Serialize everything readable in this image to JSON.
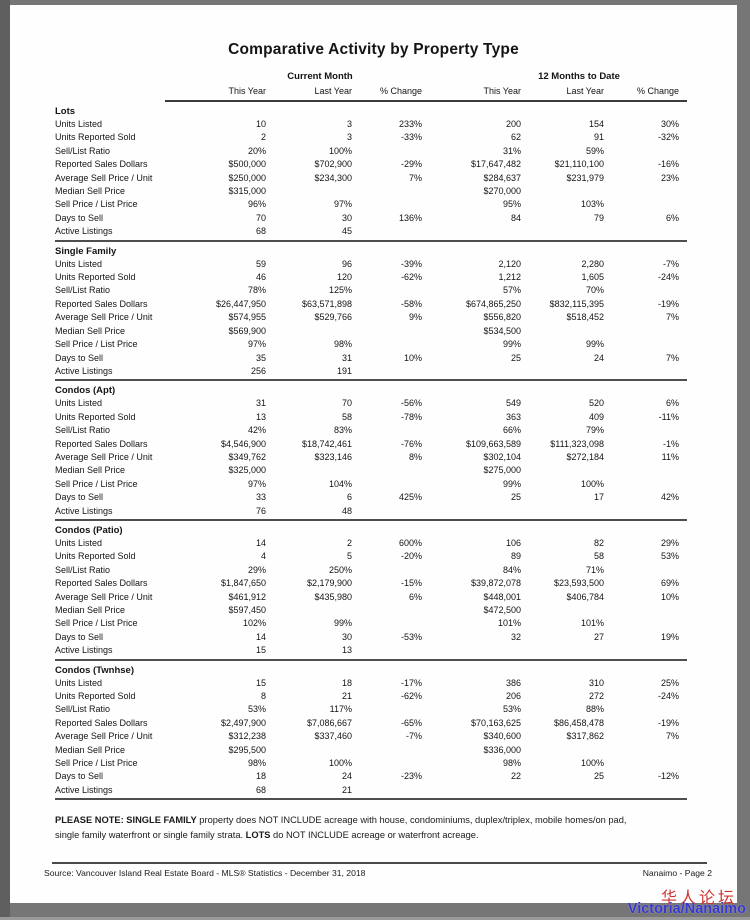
{
  "title": "Comparative Activity by Property Type",
  "table": {
    "group_headers": [
      "Current Month",
      "12 Months to Date"
    ],
    "column_headers": [
      "This Year",
      "Last Year",
      "% Change",
      "This Year",
      "Last Year",
      "% Change"
    ],
    "sections": [
      {
        "name": "Lots",
        "rows": [
          {
            "label": "Units Listed",
            "cells": [
              "10",
              "3",
              "233%",
              "200",
              "154",
              "30%"
            ]
          },
          {
            "label": "Units Reported Sold",
            "cells": [
              "2",
              "3",
              "-33%",
              "62",
              "91",
              "-32%"
            ]
          },
          {
            "label": "Sell/List Ratio",
            "cells": [
              "20%",
              "100%",
              "",
              "31%",
              "59%",
              ""
            ]
          },
          {
            "label": "Reported Sales Dollars",
            "cells": [
              "$500,000",
              "$702,900",
              "-29%",
              "$17,647,482",
              "$21,110,100",
              "-16%"
            ]
          },
          {
            "label": "Average Sell Price / Unit",
            "cells": [
              "$250,000",
              "$234,300",
              "7%",
              "$284,637",
              "$231,979",
              "23%"
            ]
          },
          {
            "label": "Median Sell Price",
            "cells": [
              "$315,000",
              "",
              "",
              "$270,000",
              "",
              ""
            ]
          },
          {
            "label": "Sell Price / List Price",
            "cells": [
              "96%",
              "97%",
              "",
              "95%",
              "103%",
              ""
            ]
          },
          {
            "label": "Days to Sell",
            "cells": [
              "70",
              "30",
              "136%",
              "84",
              "79",
              "6%"
            ]
          },
          {
            "label": "Active Listings",
            "cells": [
              "68",
              "45",
              "",
              "",
              "",
              ""
            ]
          }
        ]
      },
      {
        "name": "Single Family",
        "rows": [
          {
            "label": "Units Listed",
            "cells": [
              "59",
              "96",
              "-39%",
              "2,120",
              "2,280",
              "-7%"
            ]
          },
          {
            "label": "Units Reported Sold",
            "cells": [
              "46",
              "120",
              "-62%",
              "1,212",
              "1,605",
              "-24%"
            ]
          },
          {
            "label": "Sell/List Ratio",
            "cells": [
              "78%",
              "125%",
              "",
              "57%",
              "70%",
              ""
            ]
          },
          {
            "label": "Reported Sales Dollars",
            "cells": [
              "$26,447,950",
              "$63,571,898",
              "-58%",
              "$674,865,250",
              "$832,115,395",
              "-19%"
            ]
          },
          {
            "label": "Average Sell Price / Unit",
            "cells": [
              "$574,955",
              "$529,766",
              "9%",
              "$556,820",
              "$518,452",
              "7%"
            ]
          },
          {
            "label": "Median Sell Price",
            "cells": [
              "$569,900",
              "",
              "",
              "$534,500",
              "",
              ""
            ]
          },
          {
            "label": "Sell Price / List Price",
            "cells": [
              "97%",
              "98%",
              "",
              "99%",
              "99%",
              ""
            ]
          },
          {
            "label": "Days to Sell",
            "cells": [
              "35",
              "31",
              "10%",
              "25",
              "24",
              "7%"
            ]
          },
          {
            "label": "Active Listings",
            "cells": [
              "256",
              "191",
              "",
              "",
              "",
              ""
            ]
          }
        ]
      },
      {
        "name": "Condos (Apt)",
        "rows": [
          {
            "label": "Units Listed",
            "cells": [
              "31",
              "70",
              "-56%",
              "549",
              "520",
              "6%"
            ]
          },
          {
            "label": "Units Reported Sold",
            "cells": [
              "13",
              "58",
              "-78%",
              "363",
              "409",
              "-11%"
            ]
          },
          {
            "label": "Sell/List Ratio",
            "cells": [
              "42%",
              "83%",
              "",
              "66%",
              "79%",
              ""
            ]
          },
          {
            "label": "Reported Sales Dollars",
            "cells": [
              "$4,546,900",
              "$18,742,461",
              "-76%",
              "$109,663,589",
              "$111,323,098",
              "-1%"
            ]
          },
          {
            "label": "Average Sell Price / Unit",
            "cells": [
              "$349,762",
              "$323,146",
              "8%",
              "$302,104",
              "$272,184",
              "11%"
            ]
          },
          {
            "label": "Median Sell Price",
            "cells": [
              "$325,000",
              "",
              "",
              "$275,000",
              "",
              ""
            ]
          },
          {
            "label": "Sell Price / List Price",
            "cells": [
              "97%",
              "104%",
              "",
              "99%",
              "100%",
              ""
            ]
          },
          {
            "label": "Days to Sell",
            "cells": [
              "33",
              "6",
              "425%",
              "25",
              "17",
              "42%"
            ]
          },
          {
            "label": "Active Listings",
            "cells": [
              "76",
              "48",
              "",
              "",
              "",
              ""
            ]
          }
        ]
      },
      {
        "name": "Condos (Patio)",
        "rows": [
          {
            "label": "Units Listed",
            "cells": [
              "14",
              "2",
              "600%",
              "106",
              "82",
              "29%"
            ]
          },
          {
            "label": "Units Reported Sold",
            "cells": [
              "4",
              "5",
              "-20%",
              "89",
              "58",
              "53%"
            ]
          },
          {
            "label": "Sell/List Ratio",
            "cells": [
              "29%",
              "250%",
              "",
              "84%",
              "71%",
              ""
            ]
          },
          {
            "label": "Reported Sales Dollars",
            "cells": [
              "$1,847,650",
              "$2,179,900",
              "-15%",
              "$39,872,078",
              "$23,593,500",
              "69%"
            ]
          },
          {
            "label": "Average Sell Price / Unit",
            "cells": [
              "$461,912",
              "$435,980",
              "6%",
              "$448,001",
              "$406,784",
              "10%"
            ]
          },
          {
            "label": "Median Sell Price",
            "cells": [
              "$597,450",
              "",
              "",
              "$472,500",
              "",
              ""
            ]
          },
          {
            "label": "Sell Price / List Price",
            "cells": [
              "102%",
              "99%",
              "",
              "101%",
              "101%",
              ""
            ]
          },
          {
            "label": "Days to Sell",
            "cells": [
              "14",
              "30",
              "-53%",
              "32",
              "27",
              "19%"
            ]
          },
          {
            "label": "Active Listings",
            "cells": [
              "15",
              "13",
              "",
              "",
              "",
              ""
            ]
          }
        ]
      },
      {
        "name": "Condos (Twnhse)",
        "rows": [
          {
            "label": "Units Listed",
            "cells": [
              "15",
              "18",
              "-17%",
              "386",
              "310",
              "25%"
            ]
          },
          {
            "label": "Units Reported Sold",
            "cells": [
              "8",
              "21",
              "-62%",
              "206",
              "272",
              "-24%"
            ]
          },
          {
            "label": "Sell/List Ratio",
            "cells": [
              "53%",
              "117%",
              "",
              "53%",
              "88%",
              ""
            ]
          },
          {
            "label": "Reported Sales Dollars",
            "cells": [
              "$2,497,900",
              "$7,086,667",
              "-65%",
              "$70,163,625",
              "$86,458,478",
              "-19%"
            ]
          },
          {
            "label": "Average Sell Price / Unit",
            "cells": [
              "$312,238",
              "$337,460",
              "-7%",
              "$340,600",
              "$317,862",
              "7%"
            ]
          },
          {
            "label": "Median Sell Price",
            "cells": [
              "$295,500",
              "",
              "",
              "$336,000",
              "",
              ""
            ]
          },
          {
            "label": "Sell Price / List Price",
            "cells": [
              "98%",
              "100%",
              "",
              "98%",
              "100%",
              ""
            ]
          },
          {
            "label": "Days to Sell",
            "cells": [
              "18",
              "24",
              "-23%",
              "22",
              "25",
              "-12%"
            ]
          },
          {
            "label": "Active Listings",
            "cells": [
              "68",
              "21",
              "",
              "",
              "",
              ""
            ]
          }
        ]
      }
    ]
  },
  "note": {
    "bold1": "PLEASE NOTE: SINGLE FAMILY",
    "text1": " property does NOT INCLUDE acreage with house, condominiums, duplex/triplex, mobile homes/on pad, single family waterfront or single family strata. ",
    "bold2": "LOTS",
    "text2": " do NOT INCLUDE acreage or waterfront acreage."
  },
  "footer": {
    "source": "Source: Vancouver Island Real Estate Board - MLS® Statistics - December 31, 2018",
    "page_label": "Nanaimo - Page 2"
  },
  "watermark": {
    "line1": "华人论坛",
    "line2": "Victoria/Nanaimo",
    "line1_color": "#cf3430",
    "line2_color": "#3737cf"
  }
}
